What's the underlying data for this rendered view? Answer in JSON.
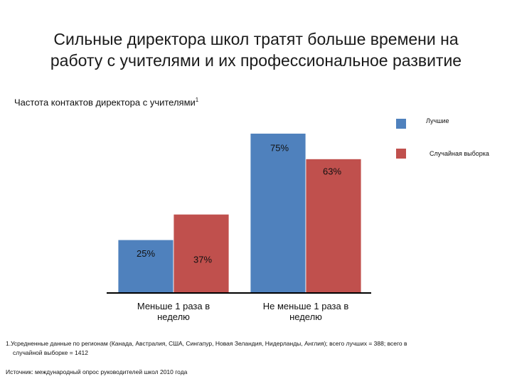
{
  "title_line1": "Сильные директора школ тратят больше времени на",
  "title_line2": "работу с учителями и их профессиональное развитие",
  "subtitle": "Частота контактов директора с учителями",
  "subtitle_sup": "1",
  "footnote_line1": "1.Усредненные данные по регионам (Канада, Австралия, США, Сингапур, Новая Зеландия, Нидерланды, Англия); всего лучших = 388; всего в",
  "footnote_line2": "случайной выборке = 1412",
  "source": "Источник: международный опрос руководителей школ 2010 года",
  "colors": {
    "best": "#4f81bd",
    "random": "#c0504d"
  },
  "chart_data": {
    "type": "bar",
    "categories": [
      [
        "Меньше 1 раза в",
        "неделю"
      ],
      [
        "Не меньше 1 раза в",
        "неделю"
      ]
    ],
    "series": [
      {
        "name": "Лучшие",
        "values": [
          25,
          75
        ],
        "labels": [
          "25%",
          "75%"
        ]
      },
      {
        "name": "Случайная выборка",
        "values": [
          37,
          63
        ],
        "labels": [
          "37%",
          "63%"
        ]
      }
    ],
    "ylim": [
      0,
      100
    ],
    "legend": "top-right",
    "grid": false
  }
}
